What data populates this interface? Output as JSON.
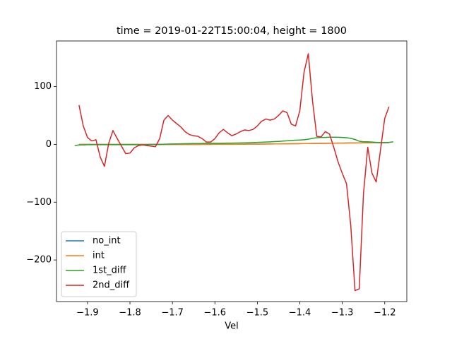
{
  "chart_data": {
    "type": "line",
    "title": "time = 2019-01-22T15:00:04, height = 1800",
    "x_label": "Vel",
    "x": [
      -1.93,
      -1.92,
      -1.91,
      -1.9,
      -1.89,
      -1.88,
      -1.87,
      -1.86,
      -1.85,
      -1.84,
      -1.83,
      -1.82,
      -1.81,
      -1.8,
      -1.79,
      -1.78,
      -1.77,
      -1.76,
      -1.75,
      -1.74,
      -1.73,
      -1.72,
      -1.71,
      -1.7,
      -1.69,
      -1.68,
      -1.67,
      -1.66,
      -1.65,
      -1.64,
      -1.63,
      -1.62,
      -1.61,
      -1.6,
      -1.59,
      -1.58,
      -1.57,
      -1.56,
      -1.55,
      -1.54,
      -1.53,
      -1.52,
      -1.51,
      -1.5,
      -1.49,
      -1.48,
      -1.47,
      -1.46,
      -1.45,
      -1.44,
      -1.43,
      -1.42,
      -1.41,
      -1.4,
      -1.39,
      -1.38,
      -1.37,
      -1.36,
      -1.35,
      -1.34,
      -1.33,
      -1.32,
      -1.31,
      -1.3,
      -1.29,
      -1.28,
      -1.27,
      -1.26,
      -1.25,
      -1.24,
      -1.23,
      -1.22,
      -1.21,
      -1.2,
      -1.19,
      -1.18
    ],
    "series": [
      {
        "name": "no_int",
        "color": "#1f77b4",
        "values": [
          null,
          0,
          0,
          0,
          0,
          0,
          0,
          0,
          0,
          0,
          0,
          0,
          0,
          0,
          0,
          0,
          0,
          0,
          0,
          0,
          0,
          0,
          0,
          0,
          0,
          0,
          0,
          0,
          0,
          0,
          0.1,
          0.1,
          0.1,
          0.2,
          0.2,
          0.2,
          0.3,
          0.3,
          0.3,
          0.4,
          0.4,
          0.5,
          0.5,
          0.6,
          0.6,
          0.7,
          0.7,
          0.8,
          0.9,
          1,
          1,
          1.1,
          1.2,
          1.3,
          1.4,
          1.5,
          1.6,
          1.7,
          1.8,
          1.9,
          2,
          2.1,
          2.2,
          2.3,
          2.4,
          2.5,
          2.6,
          2.7,
          2.8,
          2.9,
          3,
          3,
          3,
          3,
          3,
          null
        ]
      },
      {
        "name": "int",
        "color": "#ff7f0e",
        "values": [
          null,
          0,
          0,
          0,
          0,
          0,
          0,
          0,
          0,
          0,
          0,
          0,
          0,
          0,
          0,
          0,
          0,
          0,
          0,
          0,
          0,
          0,
          0,
          0,
          0,
          0,
          0,
          0,
          0,
          0,
          0.1,
          0.1,
          0.1,
          0.2,
          0.2,
          0.2,
          0.3,
          0.3,
          0.3,
          0.4,
          0.4,
          0.5,
          0.5,
          0.6,
          0.6,
          0.7,
          0.7,
          0.8,
          0.9,
          1,
          1,
          1.1,
          1.2,
          1.3,
          1.4,
          1.5,
          1.6,
          1.7,
          1.8,
          1.9,
          2,
          2.1,
          2.2,
          2.3,
          2.4,
          2.5,
          2.6,
          2.7,
          2.8,
          2.9,
          3,
          3,
          3,
          3,
          3,
          null
        ]
      },
      {
        "name": "1st_diff",
        "color": "#2ca02c",
        "values": [
          -2,
          -1,
          -1,
          -0.5,
          -0.5,
          -0.5,
          -0.5,
          -0.5,
          -0.5,
          -0.5,
          -0.5,
          -0.5,
          -0.5,
          -0.5,
          -0.5,
          -0.5,
          -0.5,
          -0.3,
          0,
          0,
          0,
          0.3,
          0.5,
          0.7,
          0.9,
          1,
          1.2,
          1.3,
          1.4,
          1.5,
          1.6,
          1.7,
          1.8,
          1.9,
          2,
          2.1,
          2.2,
          2.3,
          2.4,
          2.5,
          2.7,
          2.9,
          3.1,
          3.4,
          3.7,
          4,
          4.4,
          4.8,
          5.2,
          5.7,
          6.2,
          6.8,
          7.2,
          7.6,
          8,
          9,
          10.5,
          11.5,
          12,
          12,
          12.5,
          12.5,
          12.3,
          12,
          11.5,
          10.5,
          8.5,
          5.5,
          4.5,
          4.5,
          4,
          3.5,
          3,
          3,
          3.5,
          4.5
        ]
      },
      {
        "name": "2nd_diff",
        "color": "#d62728",
        "values": [
          null,
          68,
          32,
          12,
          6,
          8,
          -22,
          -38,
          2,
          24,
          10,
          -3,
          -16,
          -15,
          -6,
          -2,
          -1,
          -2,
          -3,
          -4,
          10,
          42,
          50,
          42,
          36,
          30,
          22,
          17,
          15,
          14,
          10,
          4,
          4,
          10,
          20,
          26,
          20,
          15,
          18,
          22,
          25,
          24,
          26,
          32,
          40,
          44,
          42,
          44,
          50,
          58,
          55,
          35,
          32,
          58,
          125,
          157,
          75,
          14,
          13,
          22,
          18,
          -5,
          -30,
          -50,
          -68,
          -140,
          -253,
          -250,
          -85,
          -5,
          -50,
          -65,
          -10,
          45,
          65,
          null
        ]
      }
    ],
    "xlim": [
      -1.973,
      -1.148
    ],
    "xticks": [
      {
        "value": -1.9,
        "label": "−1.9"
      },
      {
        "value": -1.8,
        "label": "−1.8"
      },
      {
        "value": -1.7,
        "label": "−1.7"
      },
      {
        "value": -1.6,
        "label": "−1.6"
      },
      {
        "value": -1.5,
        "label": "−1.5"
      },
      {
        "value": -1.4,
        "label": "−1.4"
      },
      {
        "value": -1.3,
        "label": "−1.3"
      },
      {
        "value": -1.2,
        "label": "−1.2"
      }
    ],
    "ylim": [
      -272,
      179
    ],
    "yticks": [
      {
        "value": -200,
        "label": "−200"
      },
      {
        "value": -100,
        "label": "−100"
      },
      0,
      100
    ],
    "grid": false,
    "legend": "lower left"
  }
}
